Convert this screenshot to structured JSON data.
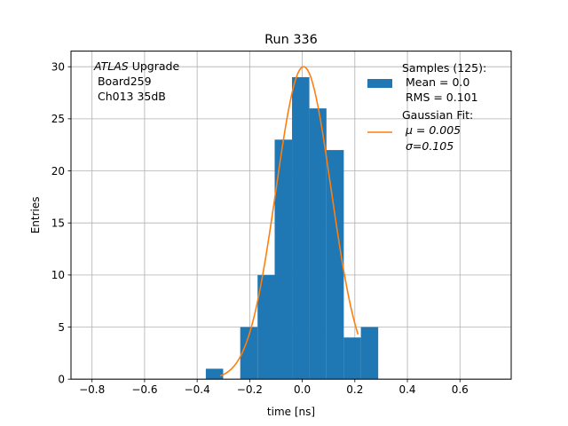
{
  "chart_data": {
    "type": "bar",
    "title": "Run 336",
    "xlabel": "time [ns]",
    "ylabel": "Entries",
    "xlim": [
      -0.88,
      0.795
    ],
    "ylim": [
      0,
      31.5
    ],
    "x_ticks": [
      -0.8,
      -0.6,
      -0.4,
      -0.2,
      0.0,
      0.2,
      0.4,
      0.6
    ],
    "y_ticks": [
      0,
      5,
      10,
      15,
      20,
      25,
      30
    ],
    "grid": true,
    "legend_position": "top-right",
    "annotation": {
      "italic": "ATLAS",
      "rest": " Upgrade",
      "line2": " Board259",
      "line3": " Ch013 35dB"
    },
    "histogram": {
      "name": "Samples (125):",
      "stat_lines": [
        " Mean = 0.0",
        " RMS = 0.101"
      ],
      "color": "#1f77b4",
      "bin_edges": [
        -0.367,
        -0.301,
        -0.236,
        -0.17,
        -0.105,
        -0.039,
        0.027,
        0.092,
        0.158,
        0.223,
        0.289
      ],
      "counts": [
        1,
        0,
        5,
        10,
        23,
        29,
        26,
        22,
        4,
        5
      ]
    },
    "fit": {
      "name": "Gaussian Fit:",
      "stat_lines": [
        " μ = 0.005",
        " σ=0.105"
      ],
      "color": "#ff7f0e",
      "amplitude": 30.0,
      "mu": 0.005,
      "sigma": 0.105,
      "x_range": [
        -0.312,
        0.212
      ]
    }
  }
}
